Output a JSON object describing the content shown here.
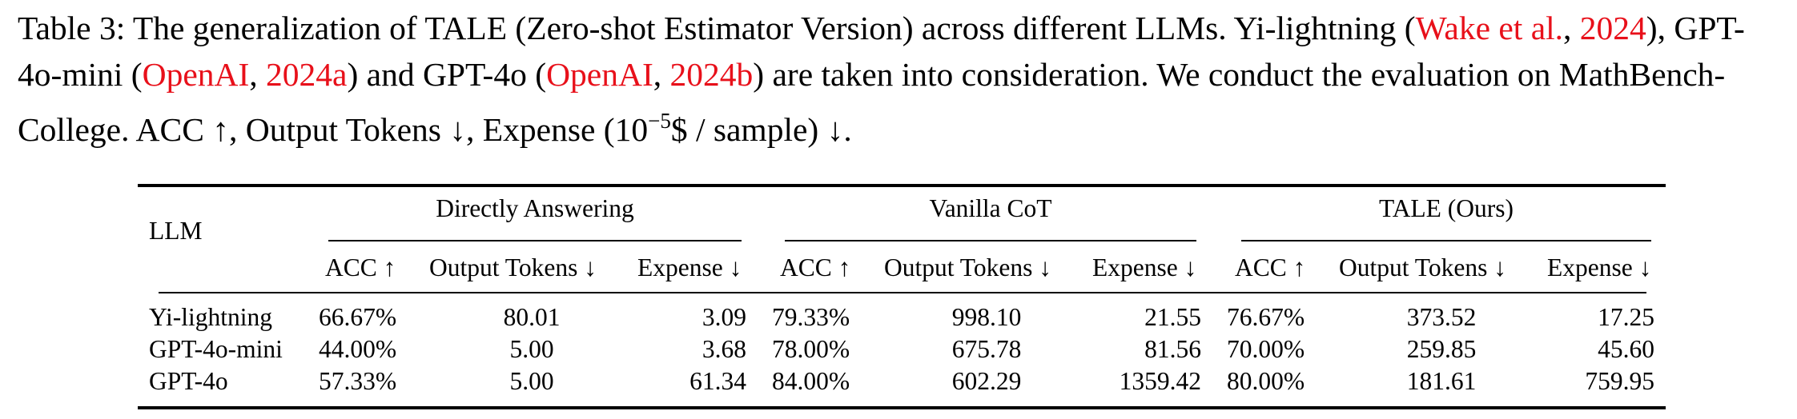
{
  "caption": {
    "p1": "Table 3: The generalization of TALE (Zero-shot Estimator Version) across different LLMs. Yi-lightning (",
    "c1a": "Wake et al.",
    "s1": ", ",
    "c1b": "2024",
    "p2": "), GPT-4o-mini (",
    "c2a": "OpenAI",
    "s2": ", ",
    "c2b": "2024a",
    "p3": ") and GPT-4o (",
    "c3a": "OpenAI",
    "s3": ", ",
    "c3b": "2024b",
    "p4": ") are taken into consideration. We conduct the evaluation on MathBench-College. ACC ↑, Output Tokens ↓, Expense (10",
    "sup": "−5",
    "p5": "$ / sample) ↓.",
    "cite_color": "#e8101a"
  },
  "table": {
    "llm_header": "LLM",
    "groups": [
      "Directly Answering",
      "Vanilla CoT",
      "TALE (Ours)"
    ],
    "subheaders": [
      "ACC ↑",
      "Output Tokens ↓",
      "Expense ↓"
    ],
    "rows": [
      {
        "model": "Yi-lightning",
        "values": [
          "66.67%",
          "80.01",
          "3.09",
          "79.33%",
          "998.10",
          "21.55",
          "76.67%",
          "373.52",
          "17.25"
        ]
      },
      {
        "model": "GPT-4o-mini",
        "values": [
          "44.00%",
          "5.00",
          "3.68",
          "78.00%",
          "675.78",
          "81.56",
          "70.00%",
          "259.85",
          "45.60"
        ]
      },
      {
        "model": "GPT-4o",
        "values": [
          "57.33%",
          "5.00",
          "61.34",
          "84.00%",
          "602.29",
          "1359.42",
          "80.00%",
          "181.61",
          "759.95"
        ]
      }
    ]
  }
}
